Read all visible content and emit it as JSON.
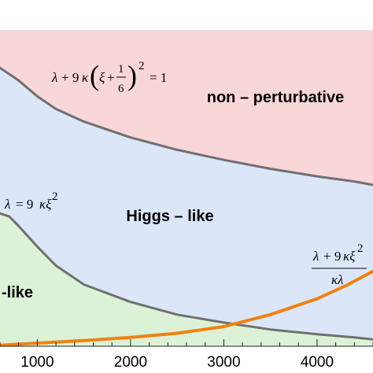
{
  "chart_data": {
    "type": "area",
    "title": "",
    "xlabel": "",
    "ylabel": "",
    "xlim": [
      600,
      4600
    ],
    "x_ticks": [
      "1000",
      "2000",
      "3000",
      "4000"
    ],
    "x_tick_values": [
      1000,
      2000,
      3000,
      4000
    ],
    "regions": [
      {
        "label": "non – perturbative",
        "color": "#f9d6d8"
      },
      {
        "label": "Higgs – like",
        "color": "#dbe7f8"
      },
      {
        "label": "-like",
        "color": "#dcf2d6"
      }
    ],
    "curves": [
      {
        "label": "λ + 9 κ (ξ + 1/6)² = 1",
        "color": "#707070",
        "x": [
          600,
          700,
          800,
          1000,
          1200,
          1500,
          2000,
          2500,
          3000,
          3500,
          4000,
          4400,
          4600
        ],
        "y": [
          0.88,
          0.86,
          0.84,
          0.79,
          0.75,
          0.71,
          0.66,
          0.621,
          0.589,
          0.561,
          0.537,
          0.521,
          0.51
        ]
      },
      {
        "label": "λ = 9 κξ²",
        "color": "#707070",
        "x": [
          600,
          700,
          800,
          1000,
          1200,
          1500,
          2000,
          2500,
          3000,
          3500,
          4000,
          4400,
          4600
        ],
        "y": [
          0.42,
          0.41,
          0.38,
          0.315,
          0.255,
          0.195,
          0.14,
          0.1,
          0.075,
          0.053,
          0.038,
          0.028,
          0.022
        ]
      },
      {
        "label": "(λ + 9 κξ²) / κλ",
        "color": "#f0820f",
        "x": [
          600,
          1000,
          1500,
          2000,
          2500,
          3000,
          3500,
          4000,
          4300,
          4600
        ],
        "y": [
          0.003,
          0.01,
          0.018,
          0.028,
          0.041,
          0.062,
          0.1,
          0.15,
          0.19,
          0.237
        ]
      }
    ],
    "annotations": {
      "upper_eq": "λ + 9 κ (ξ + 1/6)² = 1",
      "lower_eq": "λ = 9 κξ²",
      "orange_eq_num": "λ + 9 κξ²",
      "orange_eq_den": "κλ"
    },
    "grid": false,
    "legend": "none"
  }
}
